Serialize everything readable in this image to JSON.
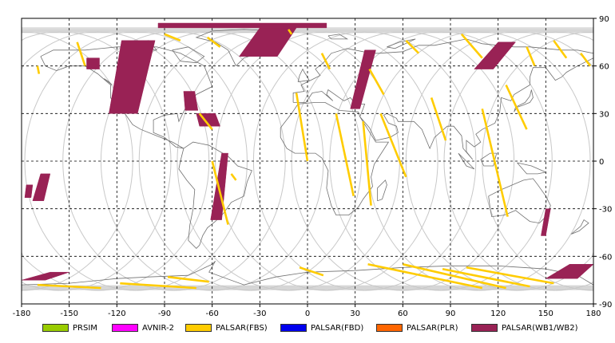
{
  "chart_data": {
    "type": "map",
    "projection": "equirectangular",
    "xlim": [
      -180,
      180
    ],
    "ylim": [
      -90,
      90
    ],
    "x_ticks": [
      "-180",
      "-150",
      "-120",
      "-90",
      "-60",
      "-30",
      "0",
      "30",
      "60",
      "90",
      "120",
      "150",
      "180"
    ],
    "y_ticks": [
      "90",
      "60",
      "30",
      "0",
      "-30",
      "-60",
      "-90"
    ],
    "grid": "dashed",
    "legend_position": "bottom",
    "legend": [
      {
        "key": "prsim",
        "label": "PRSIM",
        "color": "#99cc00"
      },
      {
        "key": "avnir2",
        "label": "AVNIR-2",
        "color": "#ff00ff"
      },
      {
        "key": "fbs",
        "label": "PALSAR(FBS)",
        "color": "#ffcc00"
      },
      {
        "key": "fbd",
        "label": "PALSAR(FBD)",
        "color": "#0000ee"
      },
      {
        "key": "plr",
        "label": "PALSAR(PLR)",
        "color": "#ff6600"
      },
      {
        "key": "wb",
        "label": "PALSAR(WB1/WB2)",
        "color": "#992255"
      }
    ],
    "orbit_track_color": "#c8c8c8",
    "coastline_color": "#707070",
    "wb_swaths": [
      {
        "lon": [
          -125,
          -107,
          -96,
          -117
        ],
        "lat": [
          30,
          30,
          76,
          76
        ]
      },
      {
        "lon": [
          -43,
          -19,
          -7,
          -30
        ],
        "lat": [
          66,
          66,
          84,
          84
        ]
      },
      {
        "lon": [
          -94,
          12,
          12,
          -94
        ],
        "lat": [
          84,
          84,
          87,
          87
        ]
      },
      {
        "lon": [
          -68,
          -55,
          -58,
          -70
        ],
        "lat": [
          22,
          22,
          30,
          30
        ]
      },
      {
        "lon": [
          -61,
          -54,
          -50,
          -54
        ],
        "lat": [
          -37,
          -37,
          5,
          5
        ]
      },
      {
        "lon": [
          -77,
          -69,
          -71,
          -78
        ],
        "lat": [
          32,
          32,
          44,
          44
        ]
      },
      {
        "lon": [
          27,
          33,
          43,
          36
        ],
        "lat": [
          33,
          33,
          70,
          70
        ]
      },
      {
        "lon": [
          105,
          117,
          131,
          120
        ],
        "lat": [
          58,
          58,
          75,
          75
        ]
      },
      {
        "lon": [
          147,
          150,
          153,
          150
        ],
        "lat": [
          -47,
          -47,
          -30,
          -30
        ]
      },
      {
        "lon": [
          -173,
          -166,
          -162,
          -168
        ],
        "lat": [
          -25,
          -25,
          -8,
          -8
        ]
      },
      {
        "lon": [
          -178,
          -174,
          -173,
          -177
        ],
        "lat": [
          -23,
          -23,
          -15,
          -15
        ]
      },
      {
        "lon": [
          -139,
          -131,
          -131,
          -139
        ],
        "lat": [
          58,
          58,
          65,
          65
        ]
      },
      {
        "lon": [
          -180,
          -165,
          -150,
          -162
        ],
        "lat": [
          -75,
          -75,
          -70,
          -70
        ]
      },
      {
        "lon": [
          150,
          170,
          180,
          165
        ],
        "lat": [
          -74,
          -74,
          -65,
          -65
        ]
      }
    ],
    "fbs_swaths": [
      {
        "lon": [
          -145,
          -140
        ],
        "lat": [
          75,
          60
        ]
      },
      {
        "lon": [
          -170,
          -169
        ],
        "lat": [
          60,
          55
        ]
      },
      {
        "lon": [
          -63,
          -55
        ],
        "lat": [
          78,
          72
        ]
      },
      {
        "lon": [
          -90,
          -80
        ],
        "lat": [
          80,
          76
        ]
      },
      {
        "lon": [
          -68,
          -60
        ],
        "lat": [
          30,
          20
        ]
      },
      {
        "lon": [
          -60,
          -50
        ],
        "lat": [
          0,
          -40
        ]
      },
      {
        "lon": [
          -48,
          -45
        ],
        "lat": [
          -8,
          -12
        ]
      },
      {
        "lon": [
          -12,
          -10
        ],
        "lat": [
          83,
          80
        ]
      },
      {
        "lon": [
          -7,
          0
        ],
        "lat": [
          43,
          0
        ]
      },
      {
        "lon": [
          9,
          14
        ],
        "lat": [
          68,
          58
        ]
      },
      {
        "lon": [
          18,
          29
        ],
        "lat": [
          30,
          -22
        ]
      },
      {
        "lon": [
          35,
          40
        ],
        "lat": [
          25,
          -28
        ]
      },
      {
        "lon": [
          39,
          48
        ],
        "lat": [
          58,
          42
        ]
      },
      {
        "lon": [
          46,
          62
        ],
        "lat": [
          30,
          -10
        ]
      },
      {
        "lon": [
          62,
          70
        ],
        "lat": [
          76,
          68
        ]
      },
      {
        "lon": [
          78,
          87
        ],
        "lat": [
          40,
          13
        ]
      },
      {
        "lon": [
          97,
          110
        ],
        "lat": [
          80,
          65
        ]
      },
      {
        "lon": [
          110,
          126
        ],
        "lat": [
          33,
          -35
        ]
      },
      {
        "lon": [
          125,
          138
        ],
        "lat": [
          48,
          20
        ]
      },
      {
        "lon": [
          138,
          143
        ],
        "lat": [
          72,
          60
        ]
      },
      {
        "lon": [
          155,
          163
        ],
        "lat": [
          76,
          65
        ]
      },
      {
        "lon": [
          172,
          178
        ],
        "lat": [
          68,
          60
        ]
      },
      {
        "lon": [
          -170,
          -130
        ],
        "lat": [
          -78,
          -80
        ]
      },
      {
        "lon": [
          -118,
          -70
        ],
        "lat": [
          -77,
          -80
        ]
      },
      {
        "lon": [
          -88,
          -62
        ],
        "lat": [
          -73,
          -76
        ]
      },
      {
        "lon": [
          -5,
          10
        ],
        "lat": [
          -67,
          -72
        ]
      },
      {
        "lon": [
          38,
          110
        ],
        "lat": [
          -65,
          -80
        ]
      },
      {
        "lon": [
          60,
          125
        ],
        "lat": [
          -65,
          -80
        ]
      },
      {
        "lon": [
          85,
          140
        ],
        "lat": [
          -68,
          -79
        ]
      },
      {
        "lon": [
          100,
          155
        ],
        "lat": [
          -67,
          -77
        ]
      }
    ]
  }
}
